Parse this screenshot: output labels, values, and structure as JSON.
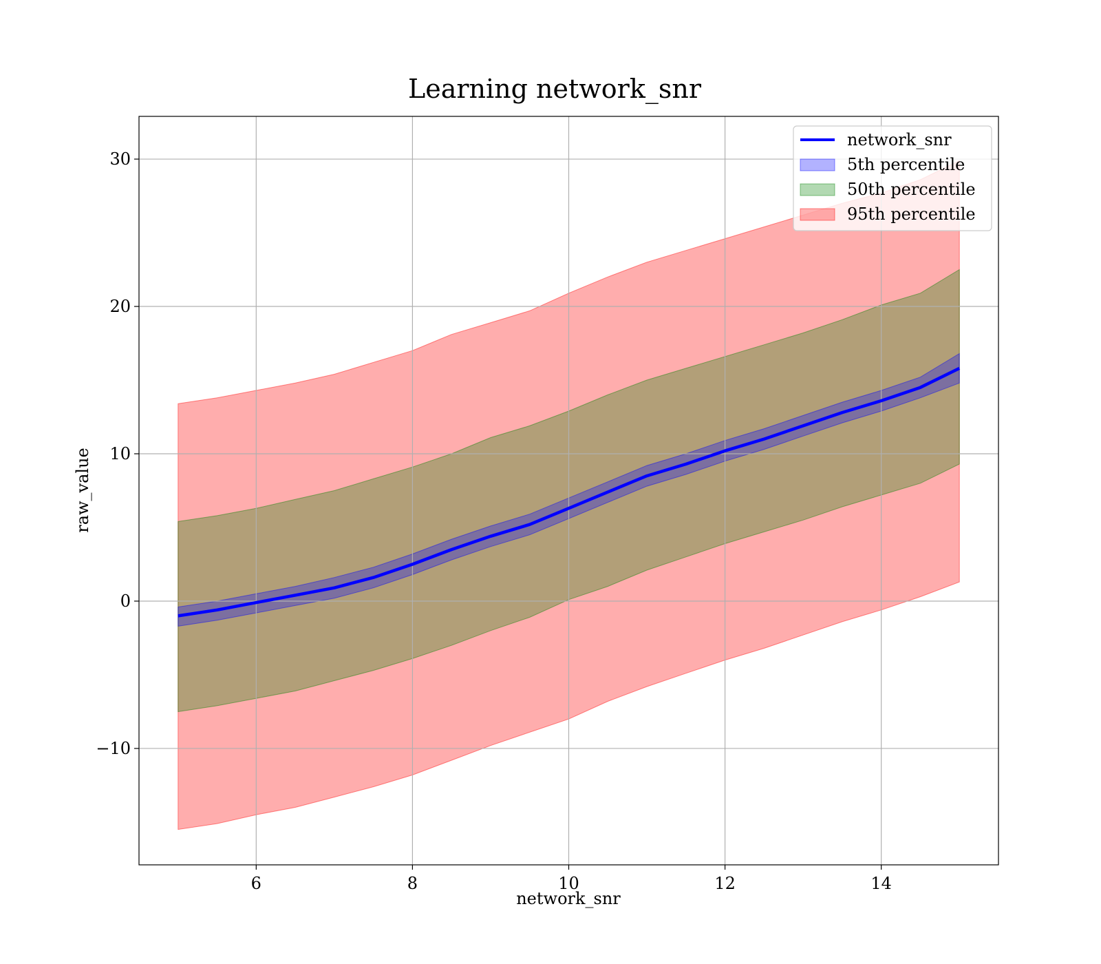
{
  "chart_data": {
    "type": "area",
    "title": "Learning network_snr",
    "xlabel": "network_snr",
    "ylabel": "raw_value",
    "xlim": [
      4.5,
      15.5
    ],
    "ylim": [
      -17.9,
      32.9
    ],
    "x_ticks": [
      6,
      8,
      10,
      12,
      14
    ],
    "y_ticks": [
      -10,
      0,
      10,
      20,
      30
    ],
    "y_tick_labels": [
      "−10",
      "0",
      "10",
      "20",
      "30"
    ],
    "grid": true,
    "legend_position": "top-right",
    "line": {
      "name": "network_snr",
      "color": "#0000ff",
      "x": [
        5.0,
        5.5,
        6.0,
        6.5,
        7.0,
        7.5,
        8.0,
        8.5,
        9.0,
        9.5,
        10.0,
        10.5,
        11.0,
        11.5,
        12.0,
        12.5,
        13.0,
        13.5,
        14.0,
        14.5,
        15.0
      ],
      "y": [
        -1.0,
        -0.6,
        -0.1,
        0.4,
        0.9,
        1.6,
        2.5,
        3.5,
        4.4,
        5.2,
        6.3,
        7.4,
        8.5,
        9.3,
        10.2,
        11.0,
        11.9,
        12.8,
        13.6,
        14.5,
        15.8
      ]
    },
    "bands": [
      {
        "name": "95th percentile",
        "color": "#ff0000",
        "opacity": 0.32,
        "x": [
          5.0,
          5.5,
          6.0,
          6.5,
          7.0,
          7.5,
          8.0,
          8.5,
          9.0,
          9.5,
          10.0,
          10.5,
          11.0,
          11.5,
          12.0,
          12.5,
          13.0,
          13.5,
          14.0,
          14.5,
          15.0
        ],
        "lower": [
          -15.5,
          -15.1,
          -14.5,
          -14.0,
          -13.3,
          -12.6,
          -11.8,
          -10.8,
          -9.8,
          -8.9,
          -8.0,
          -6.8,
          -5.8,
          -4.9,
          -4.0,
          -3.2,
          -2.3,
          -1.4,
          -0.6,
          0.3,
          1.3
        ],
        "upper": [
          13.4,
          13.8,
          14.3,
          14.8,
          15.4,
          16.2,
          17.0,
          18.1,
          18.9,
          19.7,
          20.9,
          22.0,
          23.0,
          23.8,
          24.6,
          25.4,
          26.2,
          27.0,
          27.7,
          28.6,
          29.9
        ]
      },
      {
        "name": "50th percentile",
        "color": "#008000",
        "opacity": 0.3,
        "x": [
          5.0,
          5.5,
          6.0,
          6.5,
          7.0,
          7.5,
          8.0,
          8.5,
          9.0,
          9.5,
          10.0,
          10.5,
          11.0,
          11.5,
          12.0,
          12.5,
          13.0,
          13.5,
          14.0,
          14.5,
          15.0
        ],
        "lower": [
          -7.5,
          -7.1,
          -6.6,
          -6.1,
          -5.4,
          -4.7,
          -3.9,
          -3.0,
          -2.0,
          -1.1,
          0.1,
          1.0,
          2.1,
          3.0,
          3.9,
          4.7,
          5.5,
          6.4,
          7.2,
          8.0,
          9.3
        ],
        "upper": [
          5.4,
          5.8,
          6.3,
          6.9,
          7.5,
          8.3,
          9.1,
          10.0,
          11.1,
          11.9,
          12.9,
          14.0,
          15.0,
          15.8,
          16.6,
          17.4,
          18.2,
          19.1,
          20.1,
          20.9,
          22.5
        ]
      },
      {
        "name": "5th percentile",
        "color": "#0000ff",
        "opacity": 0.3,
        "x": [
          5.0,
          5.5,
          6.0,
          6.5,
          7.0,
          7.5,
          8.0,
          8.5,
          9.0,
          9.5,
          10.0,
          10.5,
          11.0,
          11.5,
          12.0,
          12.5,
          13.0,
          13.5,
          14.0,
          14.5,
          15.0
        ],
        "lower": [
          -1.7,
          -1.3,
          -0.8,
          -0.3,
          0.2,
          0.9,
          1.8,
          2.8,
          3.7,
          4.5,
          5.6,
          6.7,
          7.8,
          8.6,
          9.5,
          10.3,
          11.2,
          12.1,
          12.9,
          13.8,
          14.8
        ],
        "upper": [
          -0.4,
          0.0,
          0.5,
          1.0,
          1.6,
          2.3,
          3.2,
          4.2,
          5.1,
          5.9,
          7.0,
          8.1,
          9.2,
          10.0,
          10.9,
          11.7,
          12.6,
          13.5,
          14.3,
          15.2,
          16.8
        ]
      }
    ],
    "legend": [
      {
        "label": "network_snr",
        "kind": "line",
        "color": "#0000ff"
      },
      {
        "label": "5th percentile",
        "kind": "patch",
        "color": "#0000ff"
      },
      {
        "label": "50th percentile",
        "kind": "patch",
        "color": "#008000"
      },
      {
        "label": "95th percentile",
        "kind": "patch",
        "color": "#ff0000"
      }
    ]
  }
}
